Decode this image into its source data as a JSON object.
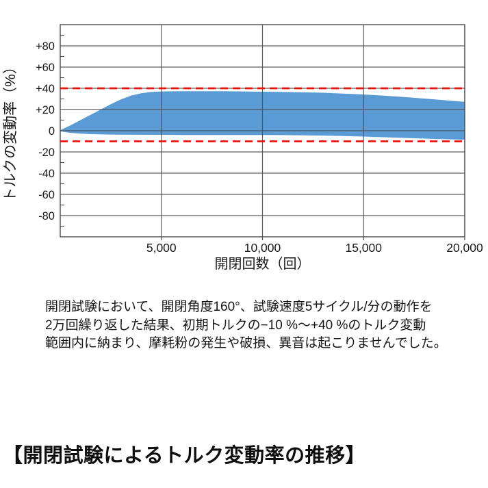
{
  "chart_data": {
    "type": "area",
    "title": "",
    "xlabel": "開閉回数（回）",
    "ylabel": "トルクの変動率（%）",
    "xlim": [
      0,
      20000
    ],
    "ylim": [
      -100,
      100
    ],
    "grid": true,
    "legend": "none",
    "x_ticks": [
      {
        "value": 5000,
        "label": "5,000"
      },
      {
        "value": 10000,
        "label": "10,000"
      },
      {
        "value": 15000,
        "label": "15,000"
      },
      {
        "value": 20000,
        "label": "20,000"
      }
    ],
    "y_ticks": [
      {
        "value": 80,
        "label": "+80"
      },
      {
        "value": 60,
        "label": "+60"
      },
      {
        "value": 40,
        "label": "+40"
      },
      {
        "value": 20,
        "label": "+20"
      },
      {
        "value": 0,
        "label": "0"
      },
      {
        "value": -20,
        "label": "-20"
      },
      {
        "value": -40,
        "label": "-40"
      },
      {
        "value": -60,
        "label": "-60"
      },
      {
        "value": -80,
        "label": "-80"
      }
    ],
    "y_minor_ticks": [
      90,
      70,
      50,
      30,
      10,
      -10,
      -30,
      -50,
      -70,
      -90
    ],
    "reference_lines": [
      {
        "value": 40,
        "color": "#e8140c",
        "style": "dashed"
      },
      {
        "value": -10,
        "color": "#e8140c",
        "style": "dashed"
      }
    ],
    "band": {
      "fill": "#5b9bd5",
      "x": [
        0,
        500,
        1000,
        1500,
        2000,
        2500,
        3000,
        3500,
        4000,
        4500,
        5000,
        6000,
        7000,
        8000,
        9000,
        10000,
        11000,
        12000,
        13000,
        14000,
        15000,
        16000,
        17000,
        18000,
        19000,
        20000
      ],
      "upper": [
        0.5,
        5,
        10,
        15,
        20,
        25,
        29.5,
        33,
        35.3,
        36.5,
        37,
        37.3,
        37.3,
        37.2,
        37,
        36.8,
        36.5,
        36.2,
        35.8,
        35,
        34.2,
        33,
        31.8,
        30.3,
        28.8,
        27.3
      ],
      "lower": [
        -0.5,
        -2,
        -2.8,
        -3.2,
        -3.5,
        -3.6,
        -3.7,
        -3.8,
        -3.8,
        -3.9,
        -3.9,
        -4,
        -4,
        -4,
        -4,
        -4,
        -4.1,
        -4.3,
        -4.6,
        -5,
        -5.5,
        -6.1,
        -6.8,
        -7.4,
        -8,
        -8.5
      ]
    },
    "colors": {
      "grid": "#4d4d4d",
      "border": "#4d4d4d",
      "text": "#1a1a1a"
    }
  },
  "description": {
    "lines": [
      "開閉試験において、開閉角度160°、試験速度5サイクル/分の動作を",
      "2万回繰り返した結果、初期トルクの−10 %～+40 %のトルク変動",
      "範囲内に納まり、摩耗粉の発生や破損、異音は起こりませんでした。"
    ]
  },
  "caption": "【開閉試験によるトルク変動率の推移】"
}
